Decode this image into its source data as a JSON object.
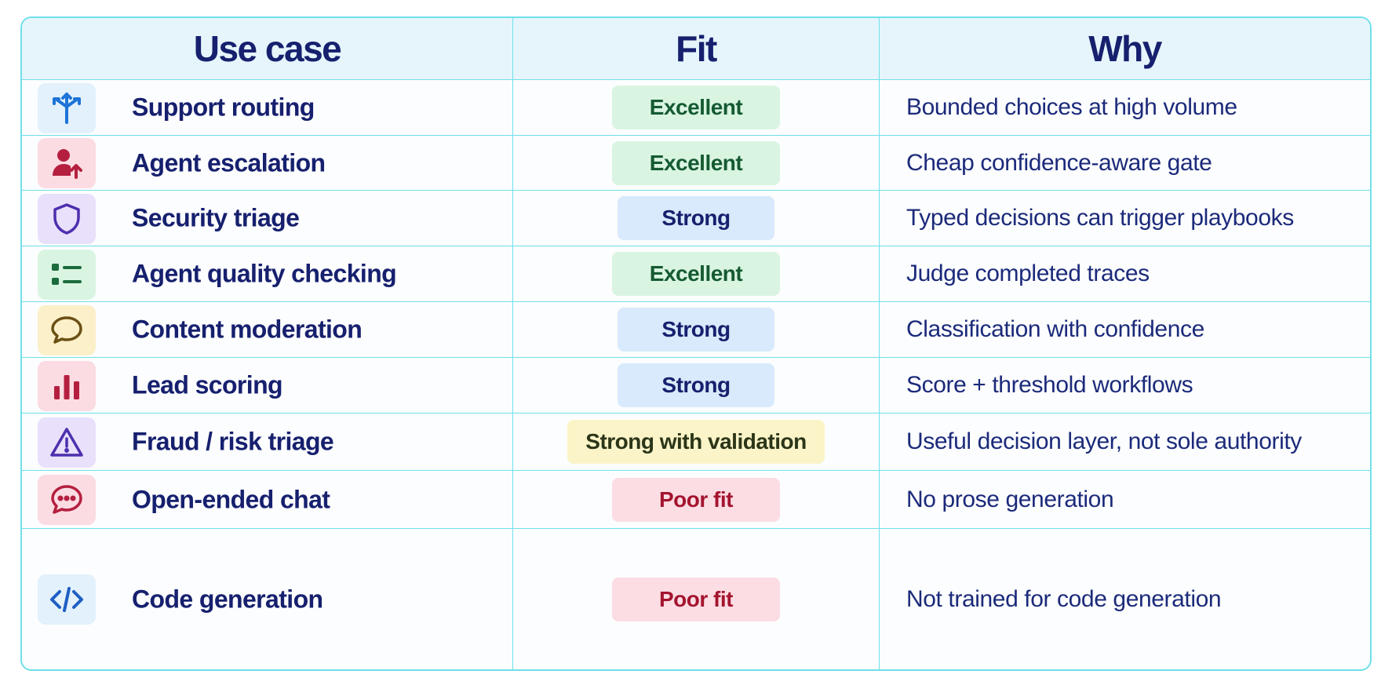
{
  "header": {
    "use_case": "Use case",
    "fit": "Fit",
    "why": "Why"
  },
  "rows": [
    {
      "use_case": "Support routing",
      "icon": "split-arrows-icon",
      "icon_bg": "#e2f1fb",
      "icon_color": "#1e74d8",
      "fit": "Excellent",
      "fit_level": "excellent",
      "why": "Bounded choices at high volume"
    },
    {
      "use_case": "Agent escalation",
      "icon": "user-escalate-icon",
      "icon_bg": "#fbdce2",
      "icon_color": "#b51f3f",
      "fit": "Excellent",
      "fit_level": "excellent",
      "why": "Cheap confidence-aware gate"
    },
    {
      "use_case": "Security triage",
      "icon": "shield-icon",
      "icon_bg": "#e9e0fb",
      "icon_color": "#4d2fae",
      "fit": "Strong",
      "fit_level": "strong",
      "why": "Typed decisions can trigger playbooks"
    },
    {
      "use_case": "Agent quality checking",
      "icon": "checklist-icon",
      "icon_bg": "#d9f5e2",
      "icon_color": "#1b6b3d",
      "fit": "Excellent",
      "fit_level": "excellent",
      "why": "Judge completed traces"
    },
    {
      "use_case": "Content moderation",
      "icon": "speech-bubble-icon",
      "icon_bg": "#fbf0c9",
      "icon_color": "#6b4f14",
      "fit": "Strong",
      "fit_level": "strong",
      "why": "Classification with confidence"
    },
    {
      "use_case": "Lead scoring",
      "icon": "bar-chart-icon",
      "icon_bg": "#fbdce2",
      "icon_color": "#b51f3f",
      "fit": "Strong",
      "fit_level": "strong",
      "why": "Score + threshold workflows"
    },
    {
      "use_case": "Fraud / risk triage",
      "icon": "warning-triangle-icon",
      "icon_bg": "#e9e0fb",
      "icon_color": "#4d2fae",
      "fit": "Strong with validation",
      "fit_level": "validation",
      "why": "Useful decision layer, not sole authority"
    },
    {
      "use_case": "Open-ended chat",
      "icon": "chat-dots-icon",
      "icon_bg": "#fbdce2",
      "icon_color": "#b51f3f",
      "fit": "Poor fit",
      "fit_level": "poor",
      "why": "No prose generation"
    },
    {
      "use_case": "Code generation",
      "icon": "code-brackets-icon",
      "icon_bg": "#e2f1fb",
      "icon_color": "#1e5fc4",
      "fit": "Poor fit",
      "fit_level": "poor",
      "why": "Not trained for code generation"
    }
  ],
  "colors": {
    "border": "#6fe0ea",
    "header_bg": "#e6f5fc",
    "text": "#16206e"
  }
}
